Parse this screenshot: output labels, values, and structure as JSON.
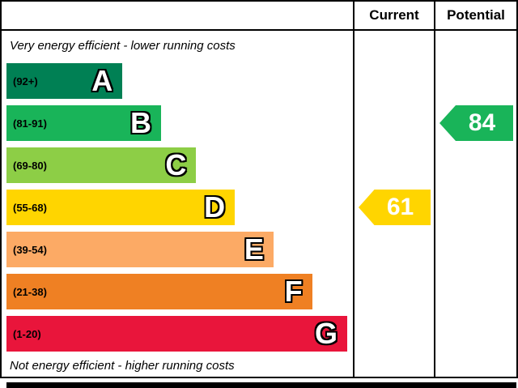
{
  "header": {
    "current": "Current",
    "potential": "Potential"
  },
  "labels": {
    "top": "Very energy efficient - lower running costs",
    "bottom": "Not energy efficient - higher running costs"
  },
  "chart_data": {
    "type": "bar",
    "categories": [
      "A",
      "B",
      "C",
      "D",
      "E",
      "F",
      "G"
    ],
    "ranges": [
      "(92+)",
      "(81-91)",
      "(69-80)",
      "(55-68)",
      "(39-54)",
      "(21-38)",
      "(1-20)"
    ],
    "colors": [
      "#008054",
      "#19b459",
      "#8dce46",
      "#ffd500",
      "#fcaa65",
      "#ef8023",
      "#e9153b"
    ],
    "bar_width_pct": [
      33,
      44,
      54,
      65,
      76,
      87,
      97
    ],
    "current": {
      "value": 61,
      "band": "D"
    },
    "potential": {
      "value": 84,
      "band": "B"
    }
  }
}
